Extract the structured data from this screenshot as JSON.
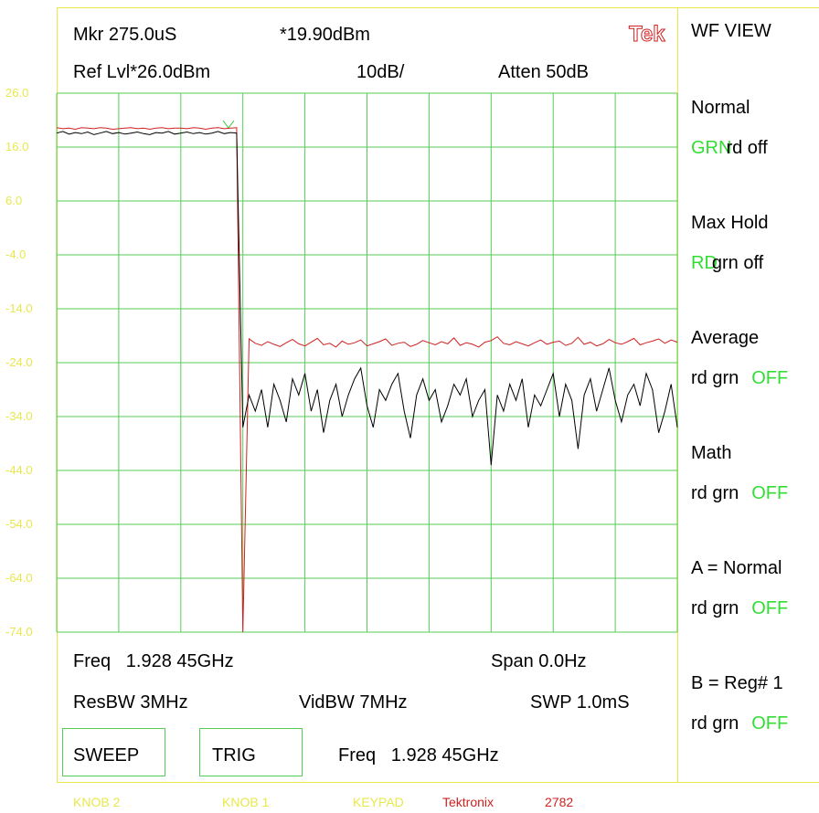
{
  "header": {
    "marker": "Mkr 275.0uS",
    "marker_level": "*19.90dBm",
    "logo": "Tek",
    "ref_level": "Ref Lvl*26.0dBm",
    "scale": "10dB/",
    "atten": "Atten 50dB"
  },
  "plot": {
    "ylim": [
      -74,
      26
    ],
    "yticks": [
      {
        "value": 26,
        "label": "26.0"
      },
      {
        "value": 16,
        "label": "16.0"
      },
      {
        "value": 6,
        "label": "6.0"
      },
      {
        "value": -4,
        "label": "-4.0"
      },
      {
        "value": -14,
        "label": "-14.0"
      },
      {
        "value": -24,
        "label": "-24.0"
      },
      {
        "value": -34,
        "label": "-34.0"
      },
      {
        "value": -44,
        "label": "-44.0"
      },
      {
        "value": -54,
        "label": "-54.0"
      },
      {
        "value": -64,
        "label": "-64.0"
      },
      {
        "value": -74,
        "label": "-74.0"
      }
    ],
    "traces": [
      {
        "color": "#d02020",
        "values": [
          19.6,
          19.4,
          19.5,
          19.3,
          19.6,
          19.5,
          19.4,
          19.6,
          19.5,
          19.3,
          19.4,
          19.5,
          19.6,
          19.4,
          19.5,
          19.3,
          19.5,
          19.6,
          19.4,
          19.5,
          19.5,
          19.4,
          19.6,
          19.5,
          19.3,
          19.5,
          19.6,
          19.4,
          19.5,
          19.6,
          -74,
          -19.6,
          -20.4,
          -20.8,
          -20.1,
          -20.6,
          -21.0,
          -20.3,
          -19.7,
          -20.5,
          -20.9,
          -20.2,
          -19.5,
          -20.7,
          -20.4,
          -21.1,
          -20.0,
          -20.6,
          -20.3,
          -19.8,
          -20.9,
          -20.5,
          -20.1,
          -19.6,
          -20.8,
          -20.4,
          -20.2,
          -21.0,
          -20.6,
          -19.9,
          -20.3,
          -20.7,
          -20.1,
          -20.5,
          -19.4,
          -20.8,
          -20.3,
          -20.6,
          -21.1,
          -20.2,
          -19.9,
          -19.2,
          -20.4,
          -20.7,
          -20.1,
          -20.5,
          -20.9,
          -20.3,
          -19.8,
          -20.6,
          -20.2,
          -20.0,
          -20.8,
          -20.4,
          -19.3,
          -20.6,
          -20.2,
          -20.9,
          -20.5,
          -19.7,
          -20.3,
          -20.6,
          -20.1,
          -19.5,
          -20.7,
          -20.3,
          -20.0,
          -19.6,
          -20.4,
          -19.8,
          -20.2
        ]
      },
      {
        "color": "#000000",
        "values": [
          18.6,
          18.9,
          18.4,
          18.7,
          18.5,
          18.8,
          18.3,
          18.6,
          18.9,
          18.5,
          18.7,
          18.4,
          18.6,
          18.8,
          18.5,
          18.3,
          18.7,
          18.6,
          18.9,
          18.4,
          18.6,
          18.8,
          18.5,
          18.7,
          18.4,
          18.6,
          18.9,
          18.5,
          18.7,
          18.6,
          -36,
          -30,
          -33,
          -29,
          -36,
          -28,
          -31,
          -35,
          -27,
          -30,
          -26,
          -33,
          -29,
          -37,
          -31,
          -28,
          -34,
          -30,
          -27,
          -25,
          -32,
          -36,
          -29,
          -31,
          -28,
          -26,
          -33,
          -38,
          -30,
          -27,
          -31,
          -29,
          -35,
          -32,
          -28,
          -30,
          -27,
          -34,
          -31,
          -29,
          -43,
          -30,
          -33,
          -28,
          -31,
          -27,
          -36,
          -30,
          -32,
          -29,
          -26,
          -34,
          -28,
          -31,
          -40,
          -30,
          -27,
          -33,
          -29,
          -25,
          -31,
          -35,
          -30,
          -28,
          -32,
          -26,
          -29,
          -37,
          -33,
          -28,
          -36
        ]
      }
    ]
  },
  "settings": {
    "freq": "Freq   1.928 45GHz",
    "span": "Span 0.0Hz",
    "resbw": "ResBW 3MHz",
    "vidbw": "VidBW 7MHz",
    "swp": "SWP 1.0mS"
  },
  "buttons": [
    "SWEEP",
    "TRIG"
  ],
  "entry": "Freq   1.928 45GHz",
  "menu": {
    "title": "WF VIEW",
    "items": [
      {
        "label": "Normal",
        "active": "GRN",
        "rest": "rd off"
      },
      {
        "label": "Max Hold",
        "active": "RD",
        "rest": "grn off"
      },
      {
        "label": "Average",
        "rest": "rd grn",
        "state": "OFF"
      },
      {
        "label": "Math",
        "rest": "rd grn",
        "state": "OFF"
      },
      {
        "label": "A = Normal",
        "rest": "rd grn",
        "state": "OFF"
      },
      {
        "label": "B = Reg# 1",
        "rest": "rd grn",
        "state": "OFF"
      }
    ]
  },
  "footer": [
    "KNOB 2",
    "KNOB 1",
    "KEYPAD",
    "Tektronix",
    "2782"
  ]
}
